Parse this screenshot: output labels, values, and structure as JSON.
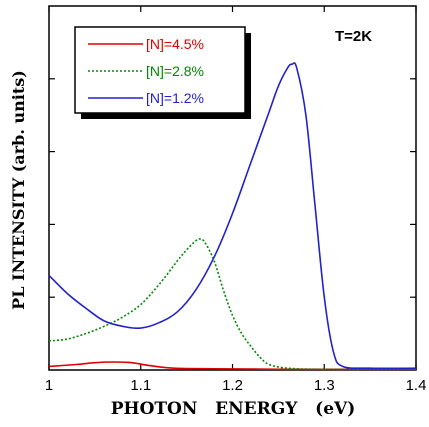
{
  "chart_data": {
    "type": "line",
    "annotation": "T=2K",
    "xlabel": "PHOTON   ENERGY   (eV)",
    "ylabel": "PL INTENSITY (arb. units)",
    "xlim": [
      1.0,
      1.4
    ],
    "ylim": [
      0,
      1.0
    ],
    "x_ticks": [
      "1",
      "1.1",
      "1.2",
      "1.3",
      "1.4"
    ],
    "y_ticks": [
      0.2,
      0.4,
      0.6,
      0.8
    ],
    "y_tick_labels_shown": false,
    "grid": false,
    "legend_position": "top-left",
    "series": [
      {
        "name": "[N]=4.5%",
        "color": "#dd0000",
        "style": "solid",
        "x": [
          1.0,
          1.03,
          1.05,
          1.07,
          1.09,
          1.11,
          1.13,
          1.15,
          1.2,
          1.25,
          1.3,
          1.35,
          1.4
        ],
        "y": [
          0.01,
          0.015,
          0.02,
          0.022,
          0.02,
          0.012,
          0.006,
          0.004,
          0.003,
          0.002,
          0.002,
          0.002,
          0.002
        ]
      },
      {
        "name": "[N]=2.8%",
        "color": "#008800",
        "style": "dotted",
        "x": [
          1.0,
          1.02,
          1.04,
          1.06,
          1.08,
          1.1,
          1.12,
          1.14,
          1.15,
          1.16,
          1.165,
          1.17,
          1.18,
          1.19,
          1.2,
          1.21,
          1.22,
          1.23,
          1.24,
          1.26,
          1.3,
          1.4
        ],
        "y": [
          0.08,
          0.085,
          0.1,
          0.12,
          0.145,
          0.18,
          0.235,
          0.3,
          0.33,
          0.355,
          0.36,
          0.35,
          0.3,
          0.22,
          0.15,
          0.1,
          0.065,
          0.035,
          0.015,
          0.005,
          0.002,
          0.002
        ]
      },
      {
        "name": "[N]=1.2%",
        "color": "#2222cc",
        "style": "solid",
        "x": [
          1.0,
          1.02,
          1.04,
          1.06,
          1.08,
          1.1,
          1.12,
          1.14,
          1.16,
          1.18,
          1.2,
          1.22,
          1.24,
          1.25,
          1.26,
          1.265,
          1.27,
          1.28,
          1.29,
          1.3,
          1.31,
          1.32,
          1.35,
          1.4
        ],
        "y": [
          0.26,
          0.21,
          0.17,
          0.135,
          0.12,
          0.115,
          0.13,
          0.16,
          0.22,
          0.31,
          0.43,
          0.57,
          0.71,
          0.78,
          0.83,
          0.84,
          0.83,
          0.7,
          0.45,
          0.2,
          0.05,
          0.01,
          0.005,
          0.005
        ]
      }
    ]
  }
}
